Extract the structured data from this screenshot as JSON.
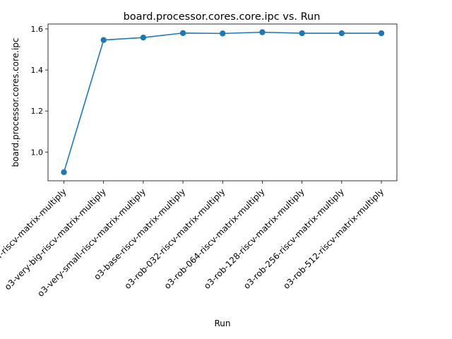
{
  "chart_data": {
    "type": "line",
    "title": "board.processor.cores.core.ipc vs. Run",
    "xlabel": "Run",
    "ylabel": "board.processor.cores.core.ipc",
    "categories": [
      "inorder-riscv-matrix-multiply",
      "o3-very-big-riscv-matrix-multiply",
      "o3-very-small-riscv-matrix-multiply",
      "o3-base-riscv-matrix-multiply",
      "o3-rob-032-riscv-matrix-multiply",
      "o3-rob-064-riscv-matrix-multiply",
      "o3-rob-128-riscv-matrix-multiply",
      "o3-rob-256-riscv-matrix-multiply",
      "o3-rob-512-riscv-matrix-multiply"
    ],
    "series": [
      {
        "values": [
          0.902,
          1.546,
          1.558,
          1.58,
          1.578,
          1.584,
          1.579,
          1.579,
          1.579
        ],
        "color": "#1f77b4"
      }
    ],
    "ylim": [
      0.86,
      1.624
    ],
    "yticks": [
      1.0,
      1.2,
      1.4,
      1.6
    ],
    "ytick_labels": [
      "1.0",
      "1.2",
      "1.4",
      "1.6"
    ],
    "grid": false,
    "legend": false,
    "marker": "circle"
  }
}
